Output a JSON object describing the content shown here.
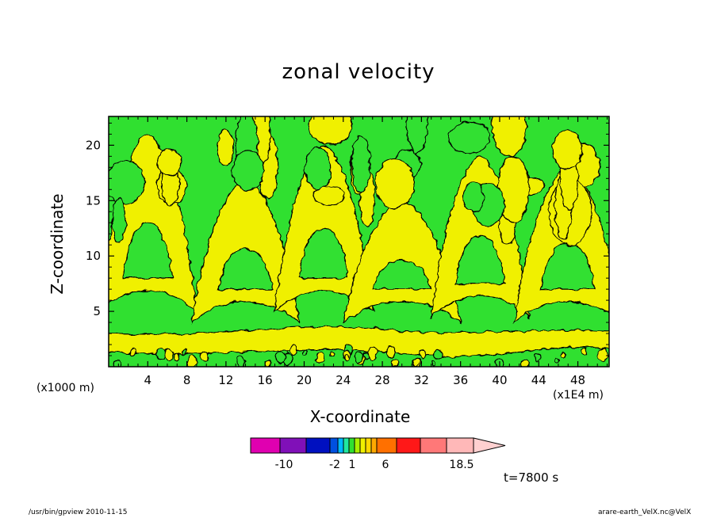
{
  "figure": {
    "title": "zonal velocity",
    "x_axis_label": "X-coordinate",
    "y_axis_label": "Z-coordinate",
    "x_unit_note": "(x1E4 m)",
    "y_unit_note": "(x1000 m)",
    "time_label": "t=7800 s",
    "footer_left": "/usr/bin/gpview   2010-11-15",
    "footer_right": "arare-earth_VelX.nc@VelX"
  },
  "chart_data": {
    "type": "heatmap",
    "title": "zonal velocity",
    "xlabel": "X-coordinate",
    "ylabel": "Z-coordinate",
    "xlim": [
      0,
      51.2
    ],
    "ylim": [
      0,
      22.6
    ],
    "x_ticks": [
      4,
      8,
      12,
      16,
      20,
      24,
      28,
      32,
      36,
      40,
      44,
      48
    ],
    "x_tick_labels": [
      "4",
      "8",
      "12",
      "16",
      "20",
      "24",
      "28",
      "32",
      "36",
      "40",
      "44",
      "48"
    ],
    "y_ticks": [
      5,
      10,
      15,
      20
    ],
    "y_tick_labels": [
      "5",
      "10",
      "15",
      "20"
    ],
    "dominant_colors": {
      "positive_low": "#f0f000",
      "negative_low": "#30e030",
      "contour": "#000000"
    },
    "colorbar": {
      "colors": [
        "#e000b0",
        "#8010b8",
        "#0010c0",
        "#0050e0",
        "#00b8ff",
        "#20e8a0",
        "#30e030",
        "#a8f000",
        "#f0f000",
        "#ffd800",
        "#ffa800",
        "#ff7000",
        "#ff1818",
        "#ff7878",
        "#ffb8b8",
        "#ffd0d0"
      ],
      "tick_labels": [
        "-10",
        "-2",
        "1",
        "6",
        "18.5"
      ],
      "extend": "max"
    }
  }
}
